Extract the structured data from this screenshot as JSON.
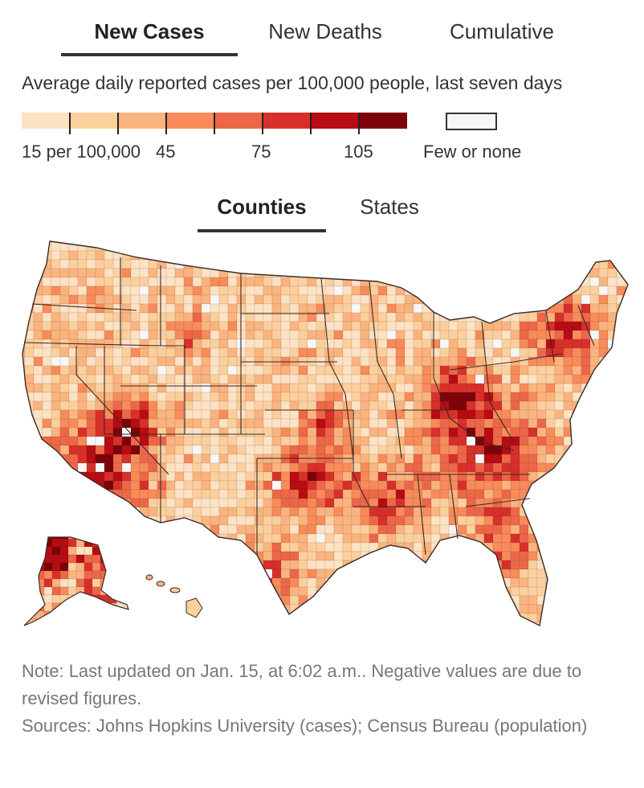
{
  "tabs": {
    "items": [
      {
        "id": "new-cases",
        "label": "New Cases",
        "active": true
      },
      {
        "id": "new-deaths",
        "label": "New Deaths",
        "active": false
      },
      {
        "id": "cumulative",
        "label": "Cumulative",
        "active": false
      }
    ]
  },
  "legend": {
    "title": "Average daily reported cases per 100,000 people, last seven days",
    "swatch_colors": [
      "#fee2c4",
      "#fcd09e",
      "#fbb47f",
      "#f88b5a",
      "#ec6748",
      "#d7302b",
      "#b70c12",
      "#7d0309"
    ],
    "few_color": "#f7f7f7",
    "labels": {
      "low": "15 per 100,000",
      "l45": "45",
      "l75": "75",
      "l105": "105",
      "few": "Few or none"
    }
  },
  "subtabs": {
    "counties": "Counties",
    "states": "States",
    "active": "Counties"
  },
  "map": {
    "region": "United States",
    "level": "counties",
    "colors": {
      "border": "#3a2a26",
      "fill_low": "#fee2c4",
      "fill_high": "#7d0309"
    }
  },
  "notes": {
    "updated": "Note: Last updated on Jan. 15, at 6:02 a.m.. Negative values are due to revised figures.",
    "sources": "Sources: Johns Hopkins University (cases); Census Bureau (population)"
  }
}
